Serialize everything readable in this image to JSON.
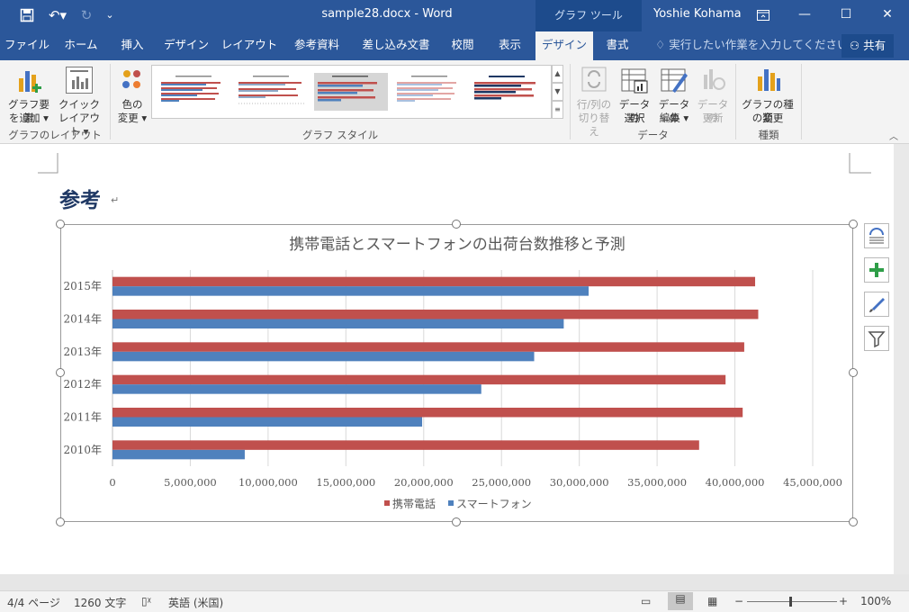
{
  "titlebar": {
    "doc_title": "sample28.docx  -  Word",
    "tool_context": "グラフ ツール",
    "user": "Yoshie Kohama"
  },
  "tabs": [
    {
      "label": "ファイル"
    },
    {
      "label": "ホーム"
    },
    {
      "label": "挿入"
    },
    {
      "label": "デザイン"
    },
    {
      "label": "レイアウト"
    },
    {
      "label": "参考資料"
    },
    {
      "label": "差し込み文書"
    },
    {
      "label": "校閲"
    },
    {
      "label": "表示"
    },
    {
      "label": "デザイン"
    },
    {
      "label": "書式"
    }
  ],
  "tell_me": "実行したい作業を入力してください",
  "share": "共有",
  "ribbon": {
    "add_element_1": "グラフ要素",
    "add_element_2": "を追加",
    "quick_layout_1": "クイック",
    "quick_layout_2": "レイアウト",
    "change_color_1": "色の",
    "change_color_2": "変更",
    "switch_row_col_1": "行/列の",
    "switch_row_col_2": "切り替え",
    "select_data_1": "データの",
    "select_data_2": "選択",
    "edit_data_1": "データの",
    "edit_data_2": "編集",
    "refresh_data_1": "データの",
    "refresh_data_2": "更新",
    "change_type_1": "グラフの種類",
    "change_type_2": "の変更",
    "group_layout": "グラフのレイアウト",
    "group_styles": "グラフ スタイル",
    "group_data": "データ",
    "group_type": "種類"
  },
  "document": {
    "heading": "参考",
    "para_mark": "↵"
  },
  "chart_data": {
    "type": "bar",
    "orientation": "horizontal",
    "title": "携帯電話とスマートフォンの出荷台数推移と予測",
    "categories": [
      "2010年",
      "2011年",
      "2012年",
      "2013年",
      "2014年",
      "2015年"
    ],
    "series": [
      {
        "name": "携帯電話",
        "color": "#c0504d",
        "values": [
          37700000,
          40500000,
          39400000,
          40600000,
          41500000,
          41300000
        ]
      },
      {
        "name": "スマートフォン",
        "color": "#4f81bd",
        "values": [
          8500000,
          19900000,
          23700000,
          27100000,
          29000000,
          30600000
        ]
      }
    ],
    "xlim": [
      0,
      45000000
    ],
    "x_ticks": [
      "0",
      "5,000,000",
      "10,000,000",
      "15,000,000",
      "20,000,000",
      "25,000,000",
      "30,000,000",
      "35,000,000",
      "40,000,000",
      "45,000,000"
    ],
    "legend": "bottom",
    "grid": true
  },
  "status": {
    "page": "4/4 ページ",
    "words": "1260 文字",
    "language": "英語 (米国)",
    "zoom": "100%"
  }
}
